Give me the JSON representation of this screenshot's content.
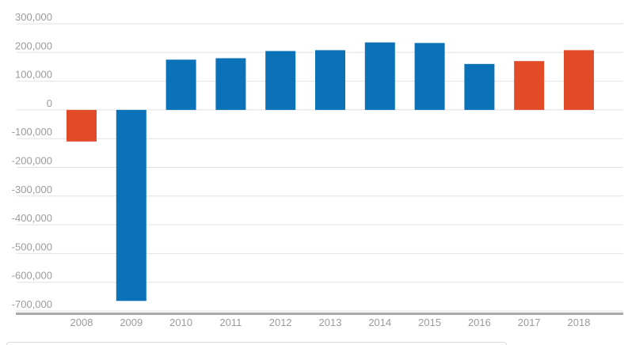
{
  "chart_data": {
    "type": "bar",
    "title": "",
    "xlabel": "",
    "ylabel": "",
    "categories": [
      "2008",
      "2009",
      "2010",
      "2011",
      "2012",
      "2013",
      "2014",
      "2015",
      "2016",
      "2017",
      "2018"
    ],
    "values": [
      -110000,
      -665000,
      175000,
      180000,
      205000,
      208000,
      235000,
      233000,
      160000,
      170000,
      208000
    ],
    "colors": [
      "#e14b28",
      "#0b72b8",
      "#0b72b8",
      "#0b72b8",
      "#0b72b8",
      "#0b72b8",
      "#0b72b8",
      "#0b72b8",
      "#0b72b8",
      "#e14b28",
      "#e14b28"
    ],
    "palette": {
      "blue": "#0b72b8",
      "orange": "#e14b28"
    },
    "ylim": [
      -700000,
      300000
    ],
    "ytick_values": [
      300000,
      200000,
      100000,
      0,
      -100000,
      -200000,
      -300000,
      -400000,
      -500000,
      -600000,
      -700000
    ],
    "ytick_labels": [
      "300,000",
      "200,000",
      "100,000",
      "0",
      "-100,000",
      "-200,000",
      "-300,000",
      "-400,000",
      "-500,000",
      "-600,000",
      "-700,000"
    ],
    "grid": true,
    "legend": false,
    "axis_text_color": "#9b9b9b",
    "gridline_color": "#e2e2e2",
    "baseline_color": "#a9a9a9"
  }
}
